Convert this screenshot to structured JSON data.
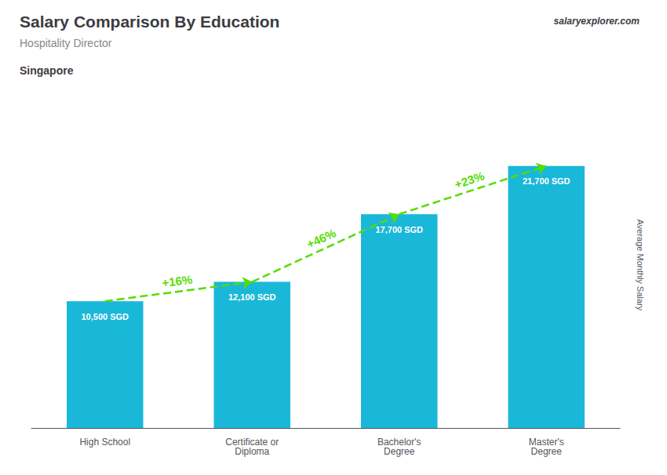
{
  "chart_data": {
    "type": "bar",
    "title": "Salary Comparison By Education",
    "subtitle": "Hospitality Director",
    "location": "Singapore",
    "brand": "salaryexplorer.com",
    "ylabel": "Average Monthly Salary",
    "categories": [
      "High School",
      "Certificate or\nDiploma",
      "Bachelor's\nDegree",
      "Master's\nDegree"
    ],
    "values": [
      10500,
      12100,
      17700,
      21700
    ],
    "value_labels": [
      "10,500 SGD",
      "12,100 SGD",
      "17,700 SGD",
      "21,700 SGD"
    ],
    "data_labels": true,
    "color": "#1ab8d8",
    "ylim": [
      0,
      27000
    ],
    "tick_labels": "x",
    "grid": false,
    "annotations": [
      {
        "text": "+16%",
        "from": "High School",
        "to": "Certificate or\nDiploma",
        "color": "#55dd00"
      },
      {
        "text": "+46%",
        "from": "Certificate or\nDiploma",
        "to": "Bachelor's\nDegree",
        "color": "#55dd00"
      },
      {
        "text": "+23%",
        "from": "Bachelor's\nDegree",
        "to": "Master's\nDegree",
        "color": "#55dd00"
      }
    ]
  }
}
